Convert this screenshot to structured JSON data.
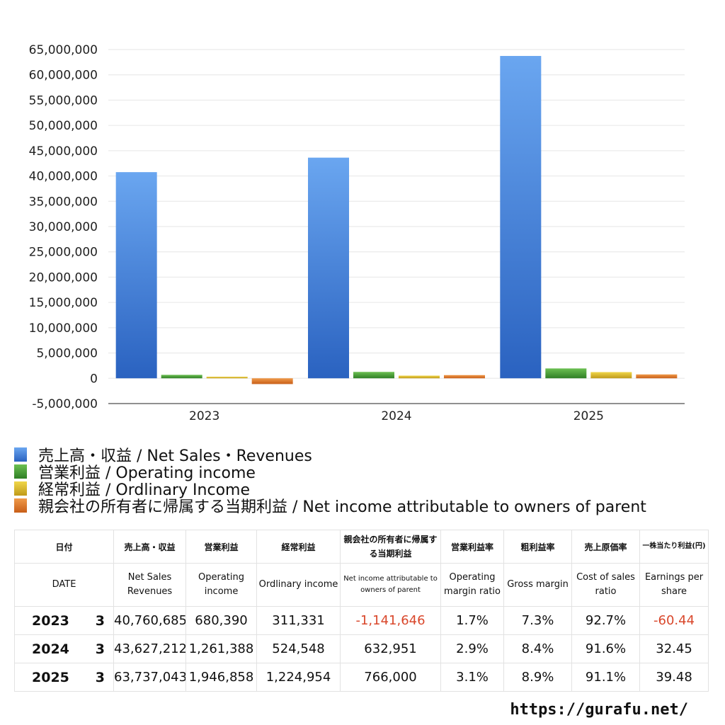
{
  "chart_data": {
    "type": "bar",
    "categories": [
      "2023",
      "2024",
      "2025"
    ],
    "series": [
      {
        "name": "売上高・収益 / Net Sales・Revenues",
        "color": "#4a86e0",
        "values": [
          40760685,
          43627212,
          63737043
        ]
      },
      {
        "name": "営業利益 / Operating income",
        "color": "#4a9a3a",
        "values": [
          680390,
          1261388,
          1946858
        ]
      },
      {
        "name": "経常利益 / Ordlinary Income",
        "color": "#d8b82e",
        "values": [
          311331,
          524548,
          1224954
        ]
      },
      {
        "name": "親会社の所有者に帰属する当期利益 / Net income attributable to owners of parent",
        "color": "#e07a2a",
        "values": [
          -1141646,
          632951,
          766000
        ]
      }
    ],
    "ylim": [
      -5000000,
      65000000
    ],
    "yticks": [
      "65,000,000",
      "60,000,000",
      "55,000,000",
      "50,000,000",
      "45,000,000",
      "40,000,000",
      "35,000,000",
      "30,000,000",
      "25,000,000",
      "20,000,000",
      "15,000,000",
      "10,000,000",
      "5,000,000",
      "0",
      "-5,000,000"
    ],
    "grid": true,
    "legend_position": "bottom",
    "title": "",
    "xlabel": "",
    "ylabel": ""
  },
  "table": {
    "headers_jp": [
      "日付",
      "売上高・収益",
      "営業利益",
      "経常利益",
      "親会社の所有者に帰属する当期利益",
      "営業利益率",
      "粗利益率",
      "売上原価率",
      "一株当たり利益(円)"
    ],
    "headers_en": [
      "DATE",
      "Net Sales Revenues",
      "Operating income",
      "Ordlinary income",
      "Net income attributable to owners of parent",
      "Operating margin ratio",
      "Gross margin",
      "Cost of sales ratio",
      "Earnings per share"
    ],
    "rows": [
      {
        "year": "2023",
        "month": "3",
        "sales": "40,760,685",
        "op": "680,390",
        "ord": "311,331",
        "net": "-1,141,646",
        "opm": "1.7%",
        "gm": "7.3%",
        "cos": "92.7%",
        "eps": "-60.44"
      },
      {
        "year": "2024",
        "month": "3",
        "sales": "43,627,212",
        "op": "1,261,388",
        "ord": "524,548",
        "net": "632,951",
        "opm": "2.9%",
        "gm": "8.4%",
        "cos": "91.6%",
        "eps": "32.45"
      },
      {
        "year": "2025",
        "month": "3",
        "sales": "63,737,043",
        "op": "1,946,858",
        "ord": "1,224,954",
        "net": "766,000",
        "opm": "3.1%",
        "gm": "8.9%",
        "cos": "91.1%",
        "eps": "39.48"
      }
    ]
  },
  "source_url": "https://gurafu.net/"
}
